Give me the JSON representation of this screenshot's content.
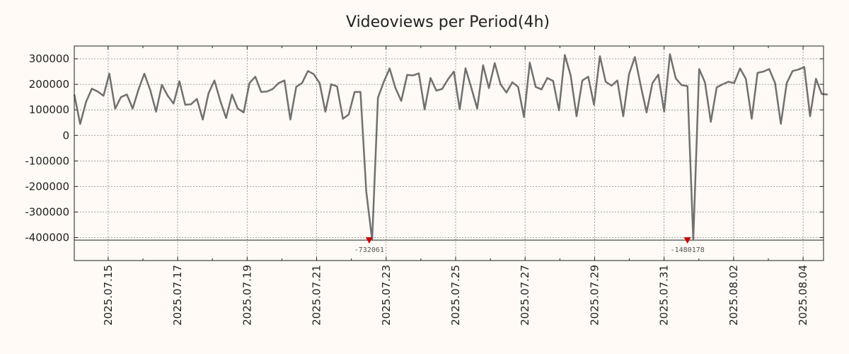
{
  "chart_data": {
    "type": "line",
    "title": "Videoviews per Period(4h)",
    "xlabel": "",
    "ylabel": "",
    "ylim": [
      -490000,
      350000
    ],
    "xlim": [
      0,
      128.3
    ],
    "grid": true,
    "line_color": "#707070",
    "marker_color": "#cc0000",
    "yticks": [
      {
        "value": 300000,
        "label": "300000"
      },
      {
        "value": 200000,
        "label": "200000"
      },
      {
        "value": 100000,
        "label": "100000"
      },
      {
        "value": 0,
        "label": "0"
      },
      {
        "value": -100000,
        "label": "-100000"
      },
      {
        "value": -200000,
        "label": "-200000"
      },
      {
        "value": -300000,
        "label": "-300000"
      },
      {
        "value": -400000,
        "label": "-400000"
      }
    ],
    "xticks": [
      {
        "x": 5.8,
        "label": "2025.07.15"
      },
      {
        "x": 17.7,
        "label": "2025.07.17"
      },
      {
        "x": 29.6,
        "label": "2025.07.19"
      },
      {
        "x": 41.5,
        "label": "2025.07.21"
      },
      {
        "x": 53.4,
        "label": "2025.07.23"
      },
      {
        "x": 65.3,
        "label": "2025.07.25"
      },
      {
        "x": 77.2,
        "label": "2025.07.27"
      },
      {
        "x": 89.1,
        "label": "2025.07.29"
      },
      {
        "x": 101.0,
        "label": "2025.07.31"
      },
      {
        "x": 112.9,
        "label": "2025.08.02"
      },
      {
        "x": 124.8,
        "label": "2025.08.04"
      }
    ],
    "clip_value": -410000,
    "annotations": [
      {
        "x": 50.5,
        "value": -732061,
        "label": "-732061"
      },
      {
        "x": 105.0,
        "label": "-1480178",
        "value": -1480178
      }
    ],
    "series": [
      {
        "name": "Videoviews",
        "values": [
          160000,
          45000,
          130000,
          183000,
          172000,
          155000,
          242000,
          105000,
          150000,
          160000,
          105000,
          180000,
          242000,
          178000,
          93000,
          198000,
          155000,
          125000,
          212000,
          120000,
          122000,
          143000,
          62000,
          165000,
          215000,
          135000,
          68000,
          160000,
          105000,
          90000,
          205000,
          230000,
          170000,
          172000,
          182000,
          205000,
          215000,
          62000,
          190000,
          205000,
          252000,
          240000,
          205000,
          93000,
          200000,
          192000,
          65000,
          82000,
          170000,
          170000,
          -220000,
          -410000,
          148000,
          210000,
          262000,
          185000,
          135000,
          237000,
          235000,
          243000,
          102000,
          225000,
          175000,
          182000,
          220000,
          250000,
          102000,
          263000,
          185000,
          105000,
          275000,
          185000,
          283000,
          200000,
          168000,
          208000,
          190000,
          72000,
          285000,
          190000,
          180000,
          225000,
          213000,
          98000,
          315000,
          235000,
          75000,
          215000,
          230000,
          120000,
          310000,
          210000,
          195000,
          215000,
          75000,
          240000,
          307000,
          195000,
          90000,
          205000,
          238000,
          93000,
          318000,
          223000,
          197000,
          193000,
          -410000,
          260000,
          208000,
          53000,
          188000,
          200000,
          210000,
          205000,
          262000,
          222000,
          65000,
          245000,
          250000,
          260000,
          205000,
          45000,
          205000,
          252000,
          258000,
          268000,
          75000,
          222000,
          162000,
          160000
        ]
      }
    ]
  }
}
